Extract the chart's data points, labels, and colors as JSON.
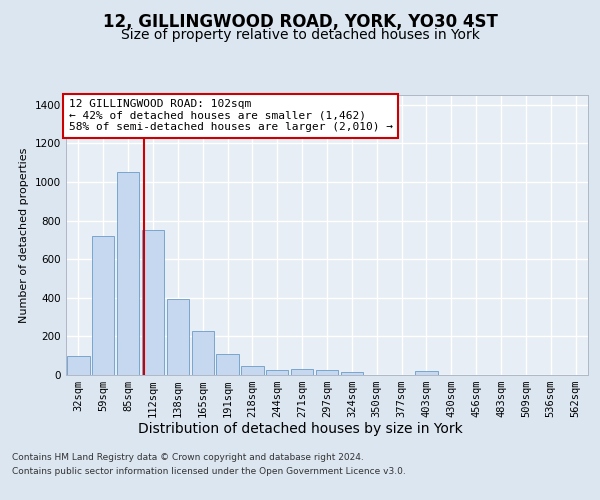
{
  "title": "12, GILLINGWOOD ROAD, YORK, YO30 4ST",
  "subtitle": "Size of property relative to detached houses in York",
  "xlabel": "Distribution of detached houses by size in York",
  "ylabel": "Number of detached properties",
  "categories": [
    "32sqm",
    "59sqm",
    "85sqm",
    "112sqm",
    "138sqm",
    "165sqm",
    "191sqm",
    "218sqm",
    "244sqm",
    "271sqm",
    "297sqm",
    "324sqm",
    "350sqm",
    "377sqm",
    "403sqm",
    "430sqm",
    "456sqm",
    "483sqm",
    "509sqm",
    "536sqm",
    "562sqm"
  ],
  "values": [
    100,
    720,
    1050,
    750,
    395,
    230,
    110,
    45,
    25,
    30,
    25,
    15,
    0,
    0,
    20,
    0,
    0,
    0,
    0,
    0,
    0
  ],
  "bar_color": "#c5d8f0",
  "bar_edge_color": "#6a9cc9",
  "vline_color": "#cc0000",
  "vline_pos": 2.63,
  "annotation_text": "12 GILLINGWOOD ROAD: 102sqm\n← 42% of detached houses are smaller (1,462)\n58% of semi-detached houses are larger (2,010) →",
  "annotation_box_color": "#ffffff",
  "annotation_box_edge_color": "#cc0000",
  "ylim": [
    0,
    1450
  ],
  "yticks": [
    0,
    200,
    400,
    600,
    800,
    1000,
    1200,
    1400
  ],
  "bg_color": "#dce6f0",
  "plot_bg_color": "#e8eef5",
  "grid_color": "#ffffff",
  "footer_line1": "Contains HM Land Registry data © Crown copyright and database right 2024.",
  "footer_line2": "Contains public sector information licensed under the Open Government Licence v3.0.",
  "title_fontsize": 12,
  "subtitle_fontsize": 10,
  "xlabel_fontsize": 10,
  "ylabel_fontsize": 8,
  "tick_fontsize": 7.5,
  "annotation_fontsize": 8,
  "footer_fontsize": 6.5
}
